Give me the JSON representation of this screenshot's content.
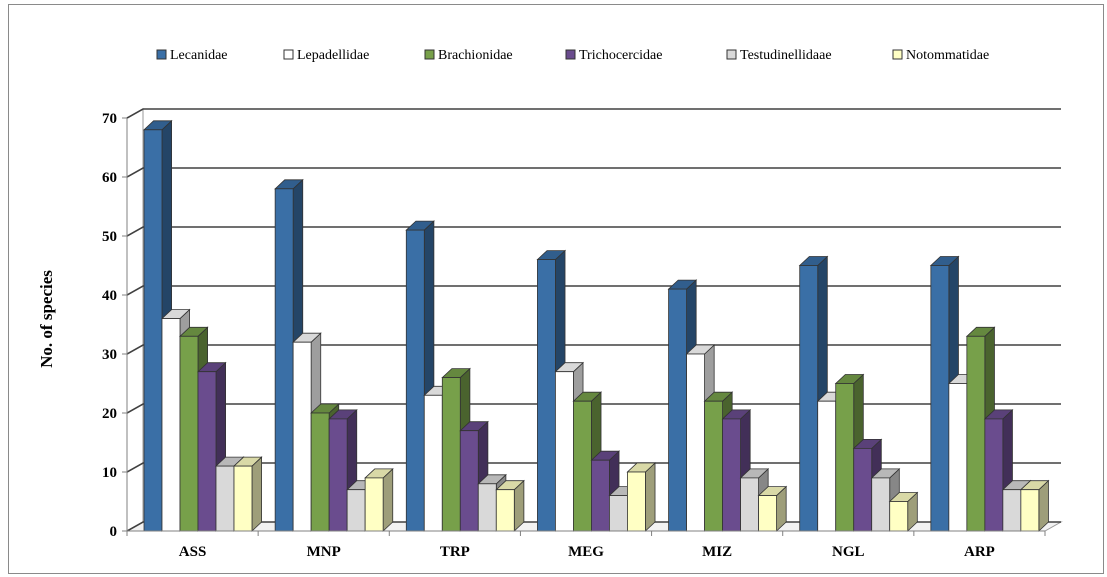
{
  "chart_data": {
    "type": "bar",
    "style": "3d-clustered-column",
    "categories": [
      "ASS",
      "MNP",
      "TRP",
      "MEG",
      "MIZ",
      "NGL",
      "ARP"
    ],
    "series": [
      {
        "name": "Lecanidae",
        "color": "#3a6fa6",
        "values": [
          68,
          58,
          51,
          46,
          41,
          45,
          45
        ]
      },
      {
        "name": "Lepadellidae",
        "color": "#ffffff",
        "values": [
          36,
          32,
          23,
          27,
          30,
          22,
          25
        ]
      },
      {
        "name": "Brachionidae",
        "color": "#77a04a",
        "values": [
          33,
          20,
          26,
          22,
          22,
          25,
          33
        ]
      },
      {
        "name": "Trichocercidae",
        "color": "#6a4c8e",
        "values": [
          27,
          19,
          17,
          12,
          19,
          14,
          19
        ]
      },
      {
        "name": "Testudinellidaae",
        "color": "#d9d9d9",
        "values": [
          11,
          7,
          8,
          6,
          9,
          9,
          7
        ]
      },
      {
        "name": "Notommatidae",
        "color": "#ffffc4",
        "values": [
          11,
          9,
          7,
          10,
          6,
          5,
          7
        ]
      }
    ],
    "xlabel": "",
    "ylabel": "No. of species",
    "ylim": [
      0,
      70
    ],
    "yticks": [
      "0",
      "10",
      "20",
      "30",
      "40",
      "50",
      "60",
      "70"
    ],
    "grid": true,
    "legend_position": "top"
  }
}
